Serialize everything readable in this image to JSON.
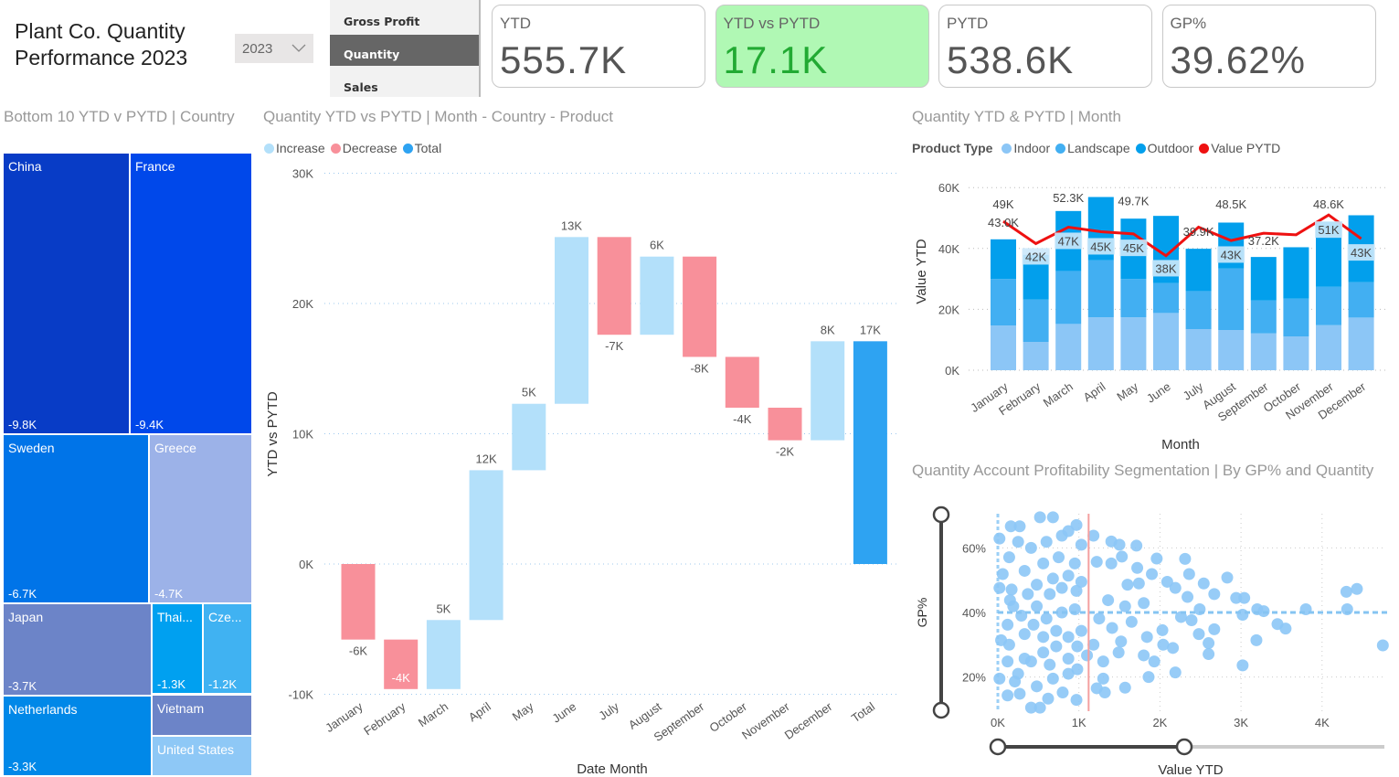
{
  "header": {
    "title_line1": "Plant Co. Quantity",
    "title_line2": "Performance 2023",
    "year_slicer": "2023"
  },
  "nav": {
    "items": [
      {
        "label": "Gross Profit",
        "selected": false
      },
      {
        "label": "Quantity",
        "selected": true
      },
      {
        "label": "Sales",
        "selected": false
      }
    ]
  },
  "kpis": [
    {
      "label": "YTD",
      "value": "555.7K"
    },
    {
      "label": "YTD vs PYTD",
      "value": "17.1K",
      "bg": "#b0f8b4",
      "color": "#22aa33"
    },
    {
      "label": "PYTD",
      "value": "538.6K"
    },
    {
      "label": "GP%",
      "value": "39.62%"
    }
  ],
  "treemap": {
    "title": "Bottom 10 YTD v PYTD | Country",
    "items": [
      {
        "name": "China",
        "value": "-9.8K",
        "color": "#083cc6"
      },
      {
        "name": "France",
        "value": "-9.4K",
        "color": "#0048ea"
      },
      {
        "name": "Sweden",
        "value": "-6.7K",
        "color": "#0074e8"
      },
      {
        "name": "Greece",
        "value": "-4.7K",
        "color": "#9cb2e8"
      },
      {
        "name": "Japan",
        "value": "-3.7K",
        "color": "#6c84c8"
      },
      {
        "name": "Thai...",
        "value": "-1.3K",
        "color": "#00a0f0"
      },
      {
        "name": "Cze...",
        "value": "-1.2K",
        "color": "#40b2f2"
      },
      {
        "name": "Netherlands",
        "value": "-3.3K",
        "color": "#0088e8"
      },
      {
        "name": "Vietnam",
        "value": "",
        "color": "#6c84c8"
      },
      {
        "name": "United States",
        "value": "",
        "color": "#8ec8f6"
      }
    ]
  },
  "chart_data": [
    {
      "type": "waterfall",
      "title": "Quantity YTD vs PYTD | Month - Country - Product",
      "xlabel": "Date Month",
      "ylabel": "YTD vs PYTD",
      "legend": [
        {
          "name": "Increase",
          "color": "#b3e0fa"
        },
        {
          "name": "Decrease",
          "color": "#f8909a"
        },
        {
          "name": "Total",
          "color": "#2ea3f2"
        }
      ],
      "ylim": [
        -10,
        30
      ],
      "yticks": [
        "-10K",
        "0K",
        "10K",
        "20K",
        "30K"
      ],
      "grid": true,
      "categories": [
        "January",
        "February",
        "March",
        "April",
        "May",
        "June",
        "July",
        "August",
        "September",
        "October",
        "November",
        "December",
        "Total"
      ],
      "values": [
        -5.8,
        -3.8,
        5.3,
        11.5,
        5.1,
        12.8,
        -7.5,
        6.0,
        -7.7,
        -3.9,
        -2.5,
        7.6,
        17.1
      ],
      "labels": [
        "-6K",
        "-4K",
        "5K",
        "12K",
        "5K",
        "13K",
        "-7K",
        "6K",
        "-8K",
        "-4K",
        "-2K",
        "8K",
        "17K"
      ]
    },
    {
      "type": "stacked-bar-line",
      "title": "Quantity YTD & PYTD | Month",
      "xlabel": "Month",
      "ylabel": "Value YTD",
      "legend_title": "Product Type",
      "ylim": [
        0,
        60
      ],
      "yticks": [
        "0K",
        "20K",
        "40K",
        "60K"
      ],
      "grid": true,
      "categories": [
        "January",
        "February",
        "March",
        "April",
        "May",
        "June",
        "July",
        "August",
        "September",
        "October",
        "November",
        "December"
      ],
      "series": [
        {
          "name": "Indoor",
          "color": "#8cc6f6",
          "values": [
            14.7,
            9.3,
            15.2,
            17.4,
            17.4,
            18.8,
            13.5,
            13.2,
            12.1,
            11.1,
            14.8,
            17.3
          ]
        },
        {
          "name": "Landscape",
          "color": "#42aff2",
          "values": [
            15.3,
            13.9,
            17.4,
            18.7,
            12.6,
            9.8,
            12.5,
            20.2,
            10.8,
            12.4,
            12.6,
            11.6
          ]
        },
        {
          "name": "Outdoor",
          "color": "#029fec",
          "values": [
            13.0,
            14.7,
            19.7,
            20.8,
            19.8,
            22.1,
            13.9,
            15.1,
            14.3,
            16.9,
            21.3,
            22.0
          ]
        },
        {
          "name": "Value PYTD",
          "color": "#ee1111",
          "type": "line",
          "values": [
            48.9,
            41.6,
            47.0,
            45.5,
            44.8,
            37.6,
            47.0,
            42.6,
            45.0,
            44.5,
            51.0,
            43.2
          ]
        }
      ],
      "data_labels": [
        {
          "m": 0,
          "text": "49K",
          "v": 53.5
        },
        {
          "m": 0,
          "text": "43.0K",
          "v": 47.5
        },
        {
          "m": 1,
          "text": "42K",
          "v": 36.2,
          "box": true
        },
        {
          "m": 2,
          "text": "52.3K",
          "v": 55.5
        },
        {
          "m": 2,
          "text": "47K",
          "v": 41.3,
          "box": true
        },
        {
          "m": 3,
          "text": "45K",
          "v": 39.5,
          "box": true
        },
        {
          "m": 4,
          "text": "49.7K",
          "v": 54.5
        },
        {
          "m": 4,
          "text": "45K",
          "v": 39.0,
          "box": true
        },
        {
          "m": 5,
          "text": "38K",
          "v": 32.3,
          "box": true
        },
        {
          "m": 6,
          "text": "39.9K",
          "v": 44.5
        },
        {
          "m": 7,
          "text": "48.5K",
          "v": 53.5
        },
        {
          "m": 7,
          "text": "43K",
          "v": 36.8,
          "box": true
        },
        {
          "m": 8,
          "text": "37.2K",
          "v": 41.5
        },
        {
          "m": 10,
          "text": "48.6K",
          "v": 53.5
        },
        {
          "m": 10,
          "text": "51K",
          "v": 45.0,
          "box": true
        },
        {
          "m": 11,
          "text": "43K",
          "v": 37.5,
          "box": true
        }
      ]
    },
    {
      "type": "scatter",
      "title": "Quantity Account Profitability Segmentation | By GP% and Quantity",
      "xlabel": "Value YTD",
      "ylabel": "GP%",
      "color": "#8cc6f6",
      "xlim": [
        0,
        4.75
      ],
      "ylim": [
        10,
        70
      ],
      "xticks": [
        "0K",
        "1K",
        "2K",
        "3K",
        "4K"
      ],
      "yticks": [
        "20%",
        "40%",
        "60%"
      ],
      "x_reference": 1.12,
      "y_reference": 40,
      "points": [
        [
          1.18,
          63.8
        ],
        [
          1.4,
          62
        ],
        [
          1.5,
          61
        ],
        [
          1.71,
          60.7
        ],
        [
          1.53,
          57.3
        ],
        [
          1.96,
          56.7
        ],
        [
          2.31,
          56.6
        ],
        [
          2.36,
          51.9
        ],
        [
          2.83,
          50.8
        ],
        [
          2.09,
          49.5
        ],
        [
          2.54,
          49
        ],
        [
          2.67,
          45.7
        ],
        [
          2.94,
          44.5
        ],
        [
          3.04,
          44.5
        ],
        [
          3.2,
          41
        ],
        [
          3.28,
          40.4
        ],
        [
          3.8,
          41
        ],
        [
          4.3,
          46.4
        ],
        [
          4.43,
          47.3
        ],
        [
          4.31,
          41
        ],
        [
          3.02,
          39.3
        ],
        [
          3.45,
          36.4
        ],
        [
          3.55,
          35
        ],
        [
          3.19,
          31.4
        ],
        [
          4.75,
          29.8
        ],
        [
          3.02,
          23.6
        ],
        [
          2.6,
          27.1
        ],
        [
          2.6,
          30.5
        ],
        [
          2.48,
          33.3
        ],
        [
          2.67,
          34.8
        ],
        [
          2.19,
          21.4
        ],
        [
          1.86,
          20
        ],
        [
          1.57,
          16.7
        ],
        [
          1.22,
          16.5
        ],
        [
          1.32,
          15.2
        ],
        [
          2.16,
          29
        ],
        [
          2.04,
          30
        ],
        [
          1.93,
          24.8
        ],
        [
          1.8,
          26.7
        ],
        [
          2.03,
          34.5
        ],
        [
          2.26,
          38.6
        ],
        [
          2.39,
          37.6
        ],
        [
          2.49,
          41
        ],
        [
          2.34,
          44.8
        ],
        [
          2.19,
          47.6
        ],
        [
          1.74,
          49
        ],
        [
          1.6,
          48.6
        ],
        [
          1.8,
          42.9
        ],
        [
          1.57,
          41.9
        ],
        [
          1.36,
          43.8
        ],
        [
          1.25,
          38.1
        ],
        [
          1.41,
          35.2
        ],
        [
          1.52,
          31
        ],
        [
          1.49,
          27.6
        ],
        [
          1.3,
          24.8
        ],
        [
          1.3,
          19.5
        ],
        [
          1.18,
          30
        ],
        [
          1.22,
          55.7
        ],
        [
          1.4,
          55.2
        ],
        [
          1.72,
          53.8
        ],
        [
          1.9,
          51.9
        ],
        [
          1.65,
          37.1
        ],
        [
          1.84,
          32.4
        ],
        [
          0.02,
          62.9
        ],
        [
          0.16,
          66.7
        ],
        [
          0.27,
          66.7
        ],
        [
          0.14,
          57.1
        ],
        [
          0.06,
          51.9
        ],
        [
          0.02,
          47.6
        ],
        [
          0.17,
          47.1
        ],
        [
          0.15,
          43.8
        ],
        [
          0.19,
          41.9
        ],
        [
          0.12,
          36.2
        ],
        [
          0.04,
          31.4
        ],
        [
          0.14,
          30
        ],
        [
          0.12,
          24.8
        ],
        [
          0.02,
          19.5
        ],
        [
          0.21,
          18.6
        ],
        [
          0.12,
          14.3
        ],
        [
          0.27,
          14.8
        ],
        [
          0.41,
          10.5
        ],
        [
          0.52,
          10.5
        ],
        [
          0.62,
          13.3
        ],
        [
          0.8,
          15.2
        ],
        [
          0.97,
          12.9
        ],
        [
          0.48,
          17.1
        ],
        [
          0.68,
          19.5
        ],
        [
          0.87,
          21
        ],
        [
          0.98,
          22.4
        ],
        [
          0.41,
          24.8
        ],
        [
          0.56,
          27.6
        ],
        [
          0.72,
          29.5
        ],
        [
          0.87,
          32.4
        ],
        [
          1.03,
          34.3
        ],
        [
          0.33,
          33.3
        ],
        [
          0.44,
          36.2
        ],
        [
          0.6,
          38.1
        ],
        [
          0.79,
          40
        ],
        [
          0.95,
          41
        ],
        [
          0.29,
          39
        ],
        [
          0.48,
          41.9
        ],
        [
          0.64,
          45.7
        ],
        [
          0.79,
          47.6
        ],
        [
          0.97,
          46.7
        ],
        [
          0.37,
          45.7
        ],
        [
          0.48,
          48.6
        ],
        [
          0.68,
          50.5
        ],
        [
          0.87,
          51.4
        ],
        [
          0.33,
          52.9
        ],
        [
          0.56,
          55.2
        ],
        [
          0.75,
          57.1
        ],
        [
          0.95,
          55.2
        ],
        [
          0.41,
          60
        ],
        [
          0.6,
          61.9
        ],
        [
          0.79,
          63.8
        ],
        [
          0.97,
          67.1
        ],
        [
          0.52,
          69.5
        ],
        [
          0.68,
          69.5
        ],
        [
          0.25,
          61.9
        ],
        [
          0.87,
          65.2
        ],
        [
          1.03,
          61
        ],
        [
          0.33,
          25.7
        ],
        [
          0.64,
          23.8
        ],
        [
          0.87,
          25.7
        ],
        [
          0.56,
          32.4
        ],
        [
          0.72,
          34.3
        ],
        [
          0.25,
          21
        ],
        [
          0.98,
          29.5
        ],
        [
          1.03,
          49.5
        ],
        [
          1.1,
          26.7
        ]
      ],
      "x_slider_range": [
        0,
        2.3
      ],
      "y_slider_range": [
        10,
        70
      ]
    }
  ]
}
